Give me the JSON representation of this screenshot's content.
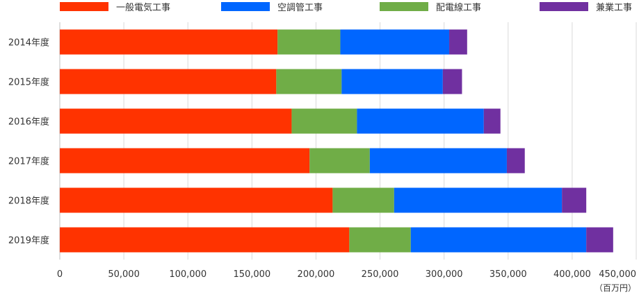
{
  "chart_data": {
    "type": "bar",
    "orientation": "horizontal",
    "stacked": true,
    "title": "",
    "xlabel": "",
    "ylabel": "",
    "unit": "（百万円）",
    "categories": [
      "2014年度",
      "2015年度",
      "2016年度",
      "2017年度",
      "2018年度",
      "2019年度"
    ],
    "series": [
      {
        "name": "一般電気工事",
        "color": "#ff3300",
        "values": [
          170000,
          169000,
          181000,
          195000,
          213000,
          226000
        ]
      },
      {
        "name": "配電線工事",
        "color": "#70ad47",
        "values": [
          49000,
          51000,
          51000,
          47000,
          48000,
          48000
        ]
      },
      {
        "name": "空調管工事",
        "color": "#0066ff",
        "values": [
          85000,
          79000,
          99000,
          107000,
          131000,
          137000
        ]
      },
      {
        "name": "兼業工事",
        "color": "#7030a0",
        "values": [
          14000,
          15000,
          13000,
          14000,
          19000,
          21000
        ]
      }
    ],
    "legend_order": [
      "一般電気工事",
      "空調管工事",
      "配電線工事",
      "兼業工事"
    ],
    "legend_position": "top",
    "xlim": [
      0,
      450000
    ],
    "xticks": [
      0,
      50000,
      100000,
      150000,
      200000,
      250000,
      300000,
      350000,
      400000,
      450000
    ],
    "xtick_labels": [
      "0",
      "50,000",
      "100,000",
      "150,000",
      "200,000",
      "250,000",
      "300,000",
      "350,000",
      "400,000",
      "450,000"
    ],
    "grid": true
  }
}
